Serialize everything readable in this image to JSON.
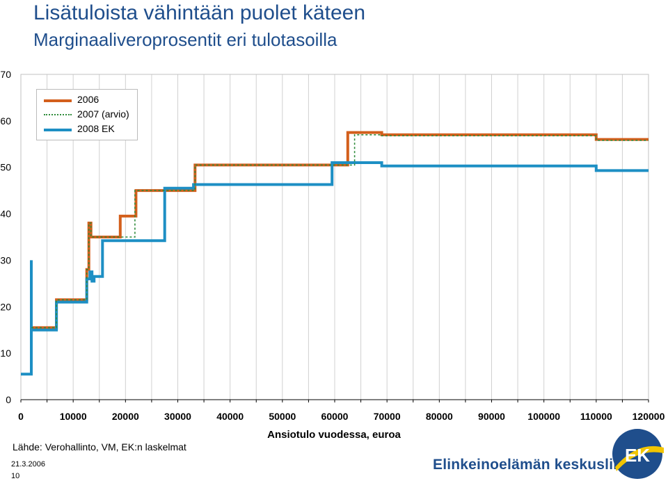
{
  "header": {
    "title": "Lisätuloista vähintään puolet käteen",
    "subtitle": "Marginaaliveroprosentit eri tulotasoilla"
  },
  "footer": {
    "source": "Lähde: Verohallinto, VM, EK:n laskelmat",
    "date": "21.3.2006",
    "page": "10",
    "org": "Elinkeinoelämän keskusliitto",
    "logo_text": "EK"
  },
  "chart_data": {
    "type": "line",
    "title": "Marginaaliveroprosentit eri tulotasoilla",
    "xlabel": "Ansiotulo vuodessa, euroa",
    "ylabel": "",
    "xlim": [
      0,
      120000
    ],
    "ylim": [
      0,
      70
    ],
    "xticks": [
      0,
      10000,
      20000,
      30000,
      40000,
      50000,
      60000,
      70000,
      80000,
      90000,
      100000,
      110000,
      120000
    ],
    "yticks": [
      0,
      10,
      20,
      30,
      40,
      50,
      60,
      70
    ],
    "grid": "vertical",
    "legend_position": "top-left",
    "series": [
      {
        "name": "2006",
        "color": "#d35f1c",
        "style": "solid",
        "points": [
          [
            2000,
            15.5
          ],
          [
            6800,
            15.5
          ],
          [
            6800,
            21.5
          ],
          [
            12600,
            21.5
          ],
          [
            12600,
            28
          ],
          [
            13000,
            28
          ],
          [
            13000,
            38
          ],
          [
            13400,
            38
          ],
          [
            13400,
            35
          ],
          [
            19000,
            35
          ],
          [
            19000,
            39.5
          ],
          [
            22000,
            39.5
          ],
          [
            22000,
            45
          ],
          [
            33300,
            45
          ],
          [
            33300,
            50.5
          ],
          [
            62500,
            50.5
          ],
          [
            62500,
            57.5
          ],
          [
            69000,
            57.5
          ],
          [
            69000,
            57
          ],
          [
            110000,
            57
          ],
          [
            110000,
            56
          ],
          [
            120000,
            56
          ]
        ]
      },
      {
        "name": "2007 (arvio)",
        "color": "#2e8b3a",
        "style": "dotted",
        "points": [
          [
            2000,
            15.5
          ],
          [
            6800,
            15.5
          ],
          [
            6800,
            21.5
          ],
          [
            12600,
            21.5
          ],
          [
            12600,
            28
          ],
          [
            13000,
            28
          ],
          [
            13000,
            38
          ],
          [
            13400,
            38
          ],
          [
            13400,
            35
          ],
          [
            21800,
            35
          ],
          [
            21800,
            45
          ],
          [
            33300,
            45
          ],
          [
            33300,
            50.5
          ],
          [
            63800,
            50.5
          ],
          [
            63800,
            57
          ],
          [
            69000,
            57
          ],
          [
            69000,
            56.8
          ],
          [
            110000,
            56.8
          ],
          [
            110000,
            55.8
          ],
          [
            120000,
            55.8
          ]
        ]
      },
      {
        "name": "2008 EK",
        "color": "#1d8fc4",
        "style": "solid",
        "points": [
          [
            0,
            5.5
          ],
          [
            2000,
            5.5
          ],
          [
            2000,
            30
          ],
          [
            2000,
            15
          ],
          [
            6800,
            15
          ],
          [
            6800,
            21
          ],
          [
            12600,
            21
          ],
          [
            12600,
            26
          ],
          [
            13200,
            26
          ],
          [
            13200,
            27.5
          ],
          [
            13600,
            27.5
          ],
          [
            13600,
            25.5
          ],
          [
            14000,
            25.5
          ],
          [
            14000,
            26.5
          ],
          [
            15600,
            26.5
          ],
          [
            15600,
            34.2
          ],
          [
            27500,
            34.2
          ],
          [
            27500,
            45.5
          ],
          [
            33000,
            45.5
          ],
          [
            33000,
            46.3
          ],
          [
            59500,
            46.3
          ],
          [
            59500,
            51
          ],
          [
            69000,
            51
          ],
          [
            69000,
            50.3
          ],
          [
            110000,
            50.3
          ],
          [
            110000,
            49.3
          ],
          [
            120000,
            49.3
          ]
        ]
      }
    ]
  }
}
